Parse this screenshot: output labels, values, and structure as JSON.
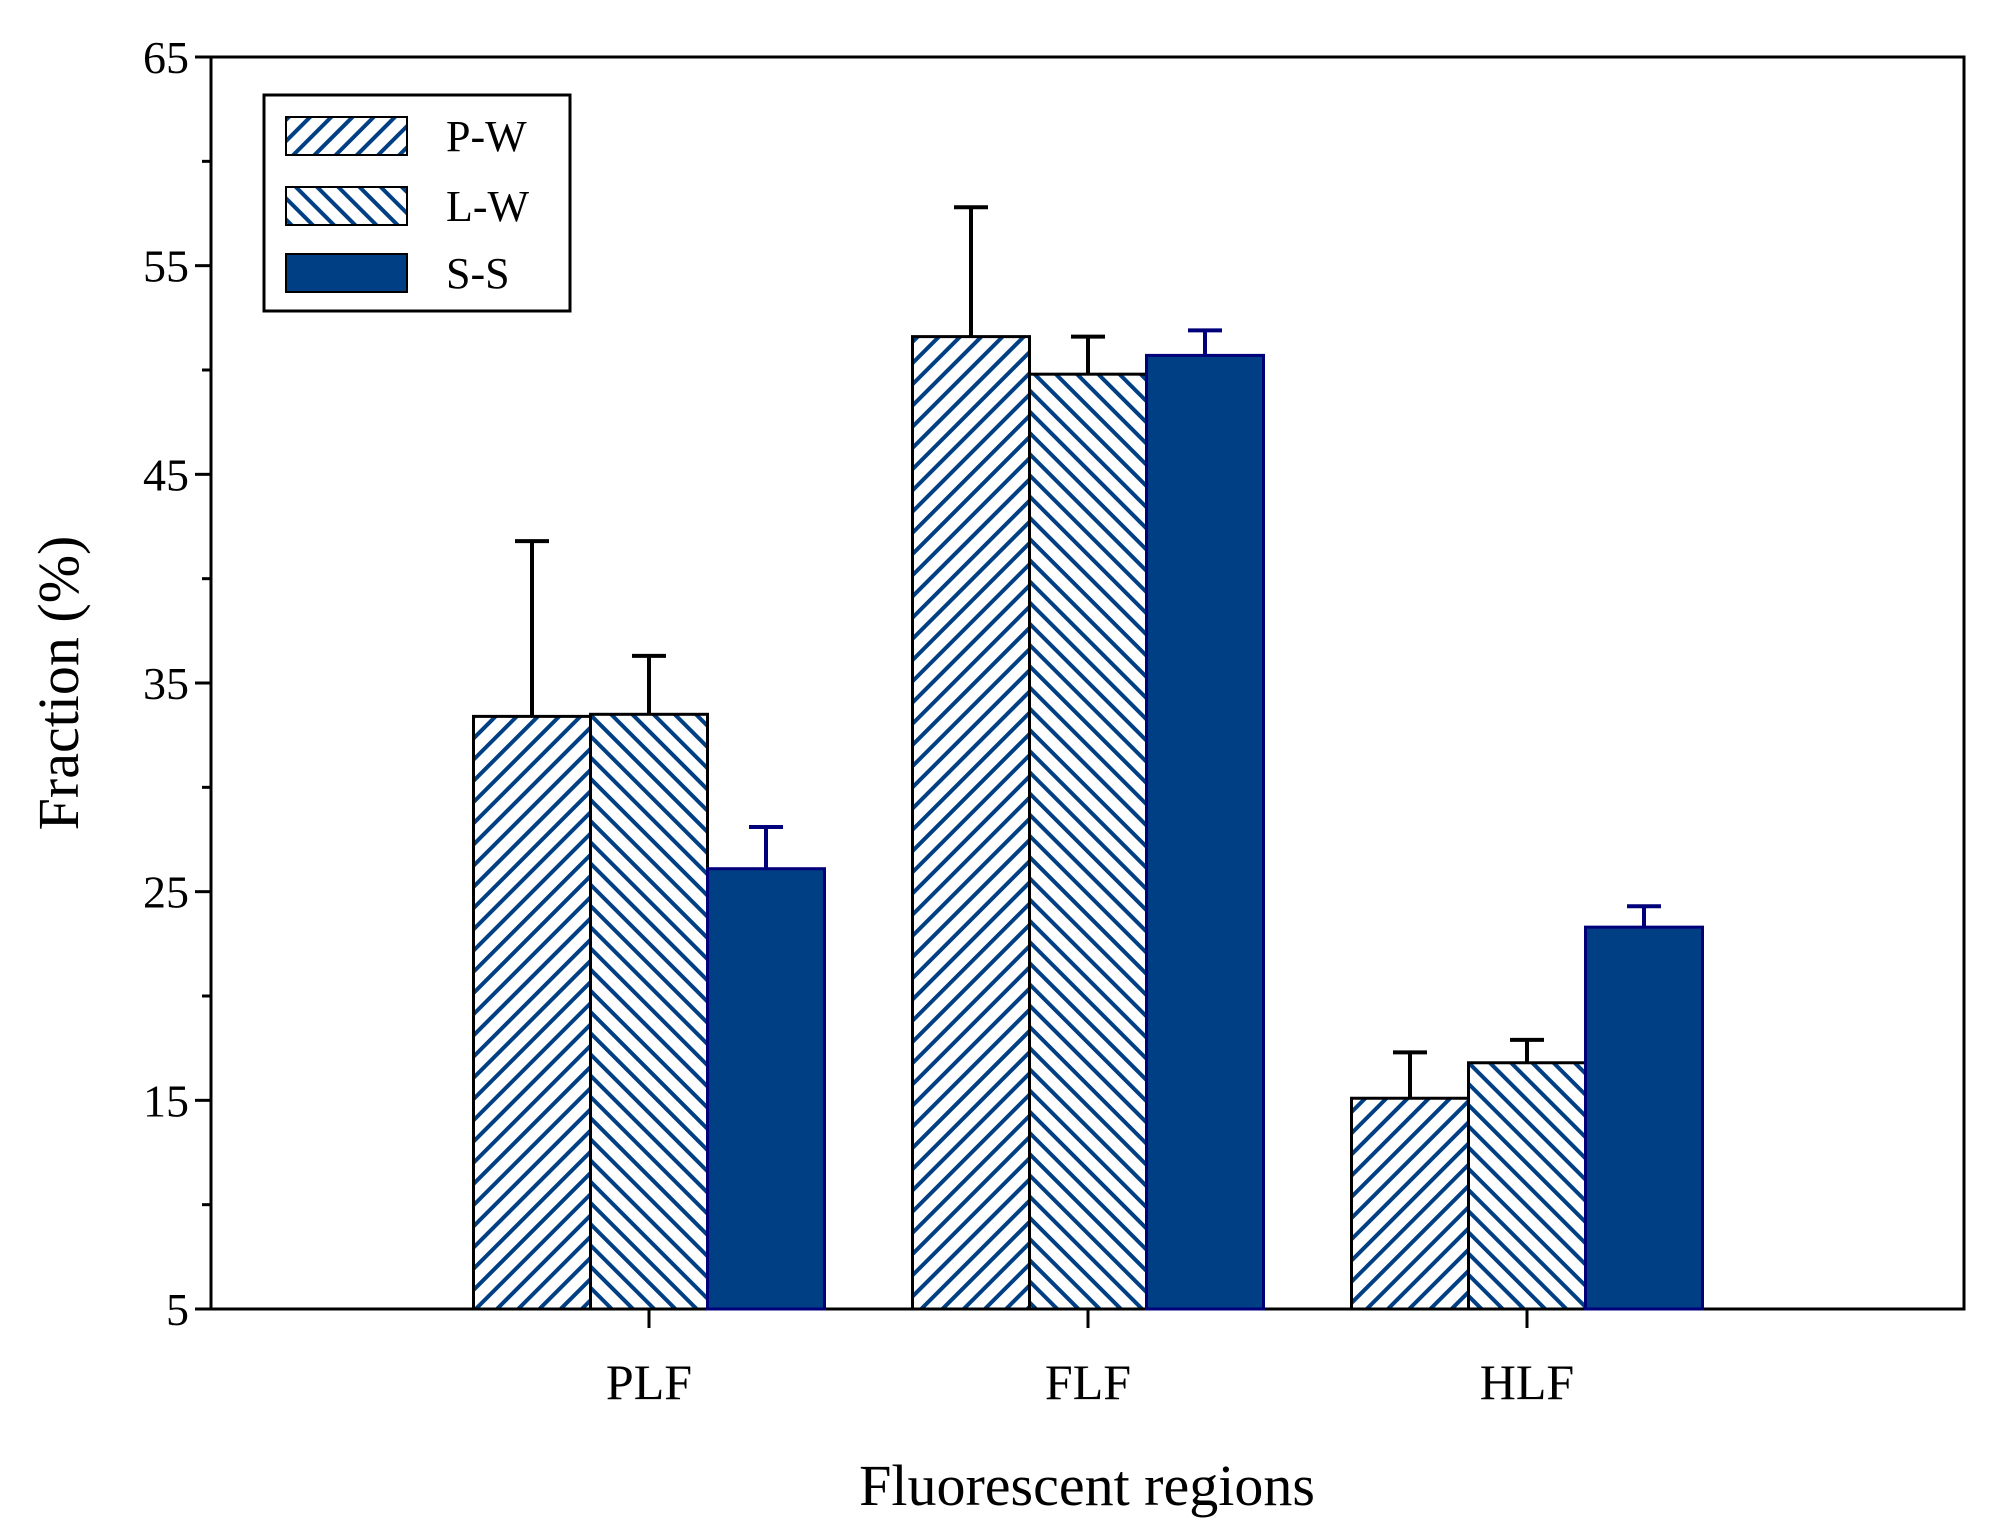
{
  "chart_data": {
    "type": "bar",
    "title": "",
    "xlabel": "Fluorescent regions",
    "ylabel": "Fraction (%)",
    "ylim": [
      5,
      65
    ],
    "yticks": [
      5,
      15,
      25,
      35,
      45,
      55,
      65
    ],
    "categories": [
      "PLF",
      "FLF",
      "HLF"
    ],
    "series": [
      {
        "name": "P-W",
        "values": [
          33.4,
          51.6,
          15.1
        ],
        "errors": [
          8.4,
          6.2,
          2.2
        ]
      },
      {
        "name": "L-W",
        "values": [
          33.5,
          49.8,
          16.8
        ],
        "errors": [
          2.8,
          1.8,
          1.1
        ]
      },
      {
        "name": "S-S",
        "values": [
          26.1,
          50.7,
          23.3
        ],
        "errors": [
          2.0,
          1.2,
          1.0
        ]
      }
    ],
    "legend_position": "top-left",
    "grid": false
  },
  "colors": {
    "bar_fill": "#003f84",
    "outline": "#000000",
    "background": "#ffffff"
  }
}
